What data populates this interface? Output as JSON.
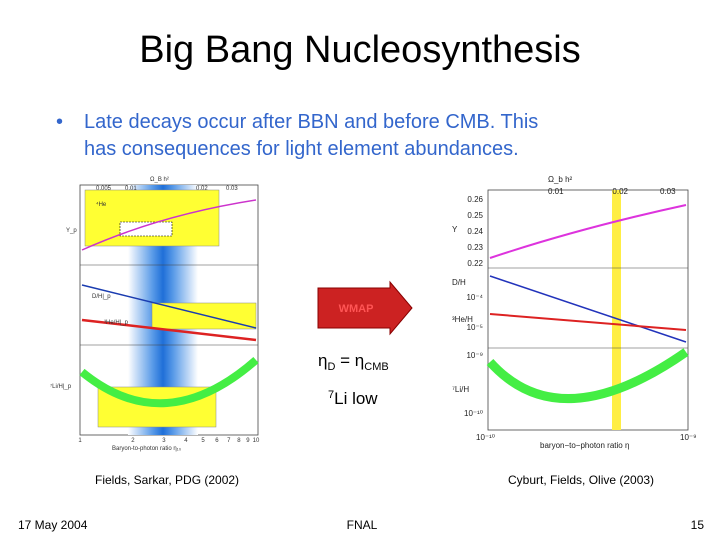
{
  "slide": {
    "title": "Big Bang Nucleosynthesis",
    "bullet": {
      "marker": "•",
      "lines": [
        "Late decays occur after BBN and before CMB.  This",
        "has consequences for light element abundances."
      ]
    },
    "left_plot": {
      "top_axis_label": "Ω_B h²",
      "top_ticks": [
        "0.005",
        "0.01",
        "0.02",
        "0.03"
      ],
      "bottom_ticks": [
        "1",
        "2",
        "3",
        "4",
        "5",
        "6",
        "7",
        "8",
        "9",
        "10"
      ],
      "x_label": "Baryon-to-photon ratio η₁₀",
      "panel_labels": [
        "⁴He",
        "Y_p",
        "D/H|_p",
        "³He/H|_p",
        "⁷Li/H|_p"
      ]
    },
    "right_plot": {
      "top_axis_label": "Ω_b h²",
      "top_ticks": [
        "0.01",
        "0.02",
        "0.03"
      ],
      "y_ticks_top": [
        "0.26",
        "0.25",
        "0.24",
        "0.23",
        "0.22"
      ],
      "y_ticks_mid": [
        "10⁻⁴",
        "10⁻⁵"
      ],
      "y_ticks_bottom": [
        "10⁻⁹",
        "10⁻¹⁰"
      ],
      "panel_labels": [
        "Y",
        "D/H",
        "³He/H",
        "⁷Li/H"
      ],
      "bottom_ticks": [
        "10⁻¹⁰",
        "10⁻⁹"
      ],
      "x_label": "baryon−to−photon ratio η"
    },
    "arrow_label": "WMAP",
    "equation": {
      "eta1": "η",
      "sub1": "D",
      "mid": " = η",
      "sub2": "CMB"
    },
    "lithium": {
      "sup": "7",
      "text": "Li low"
    },
    "captions": [
      "Fields, Sarkar, PDG (2002)",
      "Cyburt, Fields, Olive (2003)"
    ],
    "footer": {
      "date": "17 May 2004",
      "venue": "FNAL",
      "page": "15"
    }
  }
}
